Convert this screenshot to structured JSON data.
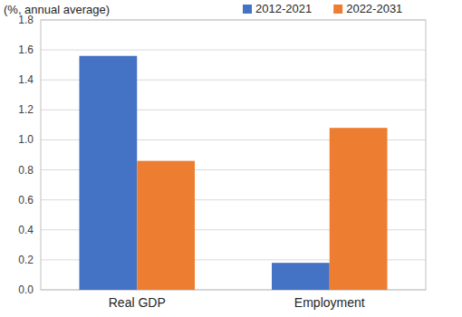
{
  "chart_data": {
    "type": "bar",
    "y_label": "(%, annual average)",
    "categories": [
      "Real GDP",
      "Employment"
    ],
    "series": [
      {
        "name": "2012-2021",
        "color": "#4472c4",
        "values": [
          1.56,
          0.18
        ]
      },
      {
        "name": "2022-2031",
        "color": "#ed7d31",
        "values": [
          0.86,
          1.08
        ]
      }
    ],
    "ylim": [
      0,
      1.8
    ],
    "yticks": [
      {
        "value": 0,
        "label": "0.0"
      },
      0.2,
      0.4,
      0.6,
      0.8,
      {
        "value": 1,
        "label": "1.0"
      },
      1.2,
      1.4,
      1.6,
      1.8
    ],
    "grid": true,
    "legend": "top"
  }
}
